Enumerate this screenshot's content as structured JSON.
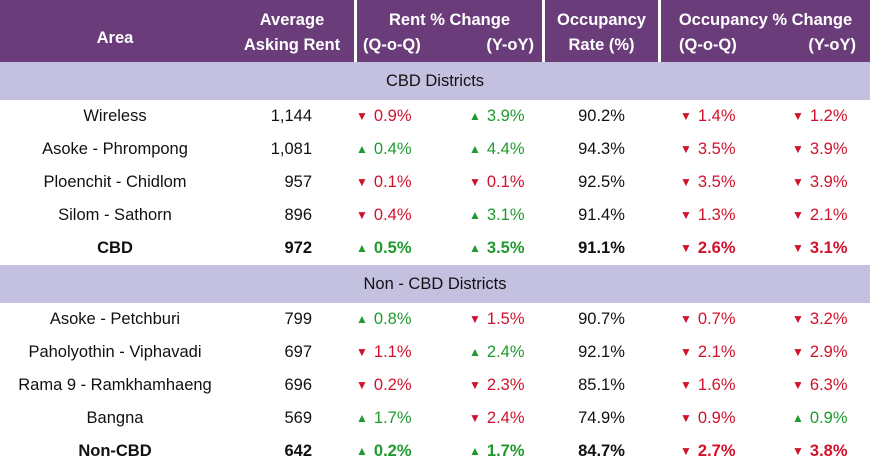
{
  "header": {
    "area": "Area",
    "rent_line1": "Average",
    "rent_line2": "Asking Rent",
    "rent_chg_line1": "Rent % Change",
    "rent_chg_qoq": "(Q-o-Q)",
    "rent_chg_yoy": "(Y-oY)",
    "occ_line1": "Occupancy",
    "occ_line2": "Rate (%)",
    "occ_chg_line1": "Occupancy % Change",
    "occ_chg_qoq": "(Q-o-Q)",
    "occ_chg_yoy": "(Y-oY)"
  },
  "colors": {
    "header_bg": "#6a3d7a",
    "section_bg": "#c3c0e0",
    "up": "#1f9a2e",
    "down": "#d0122c"
  },
  "sections": [
    {
      "title": "CBD Districts",
      "rows": [
        {
          "area": "Wireless",
          "rent": "1,144",
          "rent_qoq": {
            "dir": "down",
            "value": "0.9%"
          },
          "rent_yoy": {
            "dir": "up",
            "value": "3.9%"
          },
          "occ": "90.2%",
          "occ_qoq": {
            "dir": "down",
            "value": "1.4%"
          },
          "occ_yoy": {
            "dir": "down",
            "value": "1.2%"
          },
          "bold": false
        },
        {
          "area": "Asoke - Phrompong",
          "rent": "1,081",
          "rent_qoq": {
            "dir": "up",
            "value": "0.4%"
          },
          "rent_yoy": {
            "dir": "up",
            "value": "4.4%"
          },
          "occ": "94.3%",
          "occ_qoq": {
            "dir": "down",
            "value": "3.5%"
          },
          "occ_yoy": {
            "dir": "down",
            "value": "3.9%"
          },
          "bold": false
        },
        {
          "area": "Ploenchit - Chidlom",
          "rent": "957",
          "rent_qoq": {
            "dir": "down",
            "value": "0.1%"
          },
          "rent_yoy": {
            "dir": "down",
            "value": "0.1%"
          },
          "occ": "92.5%",
          "occ_qoq": {
            "dir": "down",
            "value": "3.5%"
          },
          "occ_yoy": {
            "dir": "down",
            "value": "3.9%"
          },
          "bold": false
        },
        {
          "area": "Silom - Sathorn",
          "rent": "896",
          "rent_qoq": {
            "dir": "down",
            "value": "0.4%"
          },
          "rent_yoy": {
            "dir": "up",
            "value": "3.1%"
          },
          "occ": "91.4%",
          "occ_qoq": {
            "dir": "down",
            "value": "1.3%"
          },
          "occ_yoy": {
            "dir": "down",
            "value": "2.1%"
          },
          "bold": false
        },
        {
          "area": "CBD",
          "rent": "972",
          "rent_qoq": {
            "dir": "up",
            "value": "0.5%"
          },
          "rent_yoy": {
            "dir": "up",
            "value": "3.5%"
          },
          "occ": "91.1%",
          "occ_qoq": {
            "dir": "down",
            "value": "2.6%"
          },
          "occ_yoy": {
            "dir": "down",
            "value": "3.1%"
          },
          "bold": true
        }
      ]
    },
    {
      "title": "Non - CBD Districts",
      "rows": [
        {
          "area": "Asoke - Petchburi",
          "rent": "799",
          "rent_qoq": {
            "dir": "up",
            "value": "0.8%"
          },
          "rent_yoy": {
            "dir": "down",
            "value": "1.5%"
          },
          "occ": "90.7%",
          "occ_qoq": {
            "dir": "down",
            "value": "0.7%"
          },
          "occ_yoy": {
            "dir": "down",
            "value": "3.2%"
          },
          "bold": false
        },
        {
          "area": "Paholyothin - Viphavadi",
          "rent": "697",
          "rent_qoq": {
            "dir": "down",
            "value": "1.1%"
          },
          "rent_yoy": {
            "dir": "up",
            "value": "2.4%"
          },
          "occ": "92.1%",
          "occ_qoq": {
            "dir": "down",
            "value": "2.1%"
          },
          "occ_yoy": {
            "dir": "down",
            "value": "2.9%"
          },
          "bold": false
        },
        {
          "area": "Rama 9 - Ramkhamhaeng",
          "rent": "696",
          "rent_qoq": {
            "dir": "down",
            "value": "0.2%"
          },
          "rent_yoy": {
            "dir": "down",
            "value": "2.3%"
          },
          "occ": "85.1%",
          "occ_qoq": {
            "dir": "down",
            "value": "1.6%"
          },
          "occ_yoy": {
            "dir": "down",
            "value": "6.3%"
          },
          "bold": false
        },
        {
          "area": "Bangna",
          "rent": "569",
          "rent_qoq": {
            "dir": "up",
            "value": "1.7%"
          },
          "rent_yoy": {
            "dir": "down",
            "value": "2.4%"
          },
          "occ": "74.9%",
          "occ_qoq": {
            "dir": "down",
            "value": "0.9%"
          },
          "occ_yoy": {
            "dir": "up",
            "value": "0.9%"
          },
          "bold": false
        },
        {
          "area": "Non-CBD",
          "rent": "642",
          "rent_qoq": {
            "dir": "up",
            "value": "0.2%"
          },
          "rent_yoy": {
            "dir": "up",
            "value": "1.7%"
          },
          "occ": "84.7%",
          "occ_qoq": {
            "dir": "down",
            "value": "2.7%"
          },
          "occ_yoy": {
            "dir": "down",
            "value": "3.8%"
          },
          "bold": true
        }
      ]
    }
  ]
}
